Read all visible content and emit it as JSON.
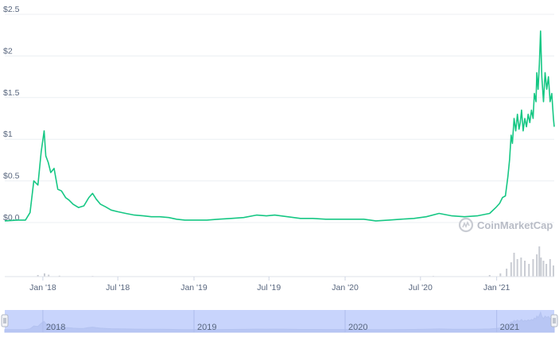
{
  "chart_data": {
    "type": "line",
    "title": "",
    "xlabel": "",
    "ylabel": "",
    "y_unit_prefix": "$",
    "ylim": [
      0,
      2.5
    ],
    "y_ticks": [
      {
        "value": 0,
        "label": "$0.0"
      },
      {
        "value": 0.5,
        "label": "$0.5"
      },
      {
        "value": 1,
        "label": "$1"
      },
      {
        "value": 1.5,
        "label": "$1.5"
      },
      {
        "value": 2,
        "label": "$2"
      },
      {
        "value": 2.5,
        "label": "$2.5"
      }
    ],
    "x_ticks": [
      "Jan '18",
      "Jul '18",
      "Jan '19",
      "Jul '19",
      "Jan '20",
      "Jul '20",
      "Jan '21"
    ],
    "x_tick_dates": [
      "2018-01-01",
      "2018-07-01",
      "2019-01-01",
      "2019-07-01",
      "2020-01-01",
      "2020-07-01",
      "2021-01-01"
    ],
    "xlim": [
      "2017-10-01",
      "2021-05-20"
    ],
    "grid": true,
    "line_color": "#16c784",
    "series": [
      {
        "x": [
          "2017-10-01",
          "2017-11-01",
          "2017-11-20",
          "2017-12-01",
          "2017-12-10",
          "2017-12-20",
          "2017-12-28",
          "2018-01-04",
          "2018-01-08",
          "2018-01-14",
          "2018-01-20",
          "2018-01-28",
          "2018-02-06",
          "2018-02-15",
          "2018-02-25",
          "2018-03-05",
          "2018-03-15",
          "2018-03-28",
          "2018-04-10",
          "2018-04-22",
          "2018-05-01",
          "2018-05-10",
          "2018-05-20",
          "2018-06-01",
          "2018-06-15",
          "2018-07-01",
          "2018-07-20",
          "2018-08-10",
          "2018-09-01",
          "2018-09-20",
          "2018-10-10",
          "2018-11-01",
          "2018-11-20",
          "2018-12-10",
          "2019-01-01",
          "2019-02-01",
          "2019-03-01",
          "2019-04-01",
          "2019-05-01",
          "2019-06-01",
          "2019-06-25",
          "2019-07-15",
          "2019-08-15",
          "2019-09-15",
          "2019-10-15",
          "2019-11-15",
          "2019-12-15",
          "2020-01-15",
          "2020-02-15",
          "2020-03-15",
          "2020-04-15",
          "2020-05-15",
          "2020-06-15",
          "2020-07-15",
          "2020-08-15",
          "2020-09-15",
          "2020-10-15",
          "2020-11-15",
          "2020-12-15",
          "2020-12-30",
          "2021-01-08",
          "2021-01-15",
          "2021-01-22",
          "2021-01-28",
          "2021-02-01",
          "2021-02-05",
          "2021-02-08",
          "2021-02-12",
          "2021-02-16",
          "2021-02-20",
          "2021-02-24",
          "2021-02-27",
          "2021-03-02",
          "2021-03-06",
          "2021-03-10",
          "2021-03-14",
          "2021-03-18",
          "2021-03-22",
          "2021-03-26",
          "2021-03-30",
          "2021-04-02",
          "2021-04-06",
          "2021-04-08",
          "2021-04-11",
          "2021-04-14",
          "2021-04-17",
          "2021-04-20",
          "2021-04-24",
          "2021-04-28",
          "2021-05-02",
          "2021-05-06",
          "2021-05-10",
          "2021-05-14",
          "2021-05-18",
          "2021-05-20"
        ],
        "values": [
          0.02,
          0.03,
          0.03,
          0.12,
          0.5,
          0.45,
          0.85,
          1.1,
          0.8,
          0.72,
          0.6,
          0.65,
          0.4,
          0.38,
          0.3,
          0.27,
          0.22,
          0.18,
          0.2,
          0.3,
          0.35,
          0.28,
          0.22,
          0.19,
          0.15,
          0.13,
          0.11,
          0.09,
          0.08,
          0.07,
          0.07,
          0.06,
          0.04,
          0.03,
          0.03,
          0.03,
          0.04,
          0.05,
          0.06,
          0.09,
          0.08,
          0.09,
          0.07,
          0.05,
          0.05,
          0.04,
          0.04,
          0.04,
          0.04,
          0.02,
          0.03,
          0.04,
          0.05,
          0.07,
          0.11,
          0.08,
          0.07,
          0.08,
          0.11,
          0.18,
          0.23,
          0.3,
          0.32,
          0.55,
          0.75,
          1.05,
          0.95,
          1.25,
          1.1,
          1.3,
          1.12,
          1.2,
          1.35,
          1.1,
          1.25,
          1.15,
          1.3,
          1.2,
          1.35,
          1.25,
          1.55,
          1.45,
          1.8,
          1.6,
          1.9,
          2.3,
          1.75,
          1.45,
          1.8,
          1.6,
          1.75,
          1.45,
          1.55,
          1.25,
          1.15
        ]
      }
    ],
    "volume": {
      "color": "#c9ccd3",
      "x": [
        "2017-12-20",
        "2018-01-05",
        "2018-01-15",
        "2018-02-10",
        "2018-05-01",
        "2019-06-01",
        "2020-08-01",
        "2020-12-15",
        "2021-01-10",
        "2021-01-25",
        "2021-02-05",
        "2021-02-12",
        "2021-02-20",
        "2021-03-01",
        "2021-03-10",
        "2021-03-20",
        "2021-03-30",
        "2021-04-08",
        "2021-04-14",
        "2021-04-18",
        "2021-04-24",
        "2021-05-01",
        "2021-05-10",
        "2021-05-18"
      ],
      "values": [
        0.05,
        0.1,
        0.06,
        0.03,
        0.02,
        0.01,
        0.02,
        0.05,
        0.1,
        0.25,
        0.45,
        0.75,
        0.55,
        0.6,
        0.5,
        0.4,
        0.55,
        0.7,
        0.95,
        0.6,
        0.5,
        0.4,
        0.55,
        0.35
      ]
    },
    "navigator": {
      "labels": [
        "2018",
        "2019",
        "2020",
        "2021"
      ],
      "label_dates": [
        "2018-01-01",
        "2019-01-01",
        "2020-01-01",
        "2021-01-01"
      ],
      "fill_color": "#c8d4fc",
      "line_color": "#b3c2f0"
    },
    "watermark": "CoinMarketCap"
  }
}
